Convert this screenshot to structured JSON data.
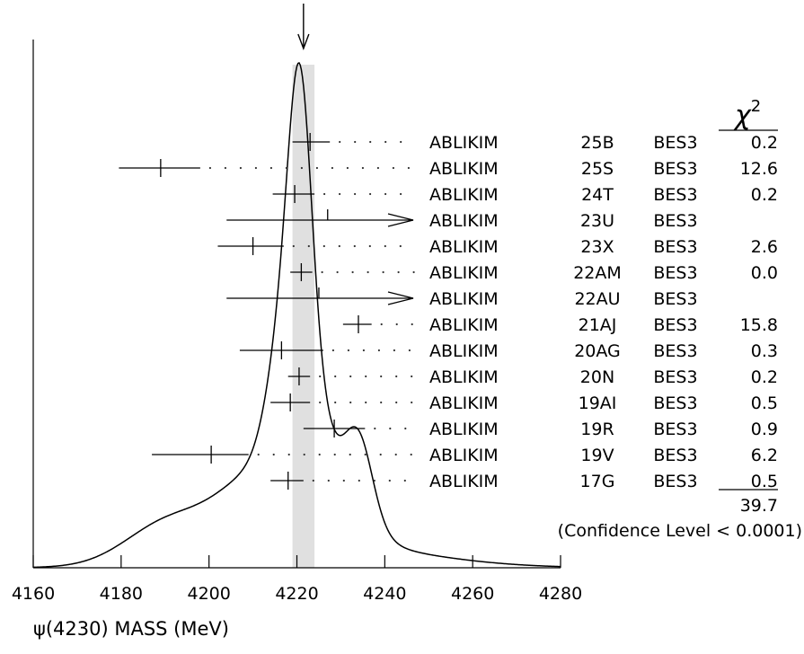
{
  "chart_data": {
    "type": "scatter",
    "subtype": "ideogram",
    "xlabel": "ψ(4230) MASS (MeV)",
    "xlim": [
      4160,
      4280
    ],
    "xticks": [
      4160,
      4180,
      4200,
      4220,
      4240,
      4260,
      4280
    ],
    "average": {
      "value": 4221.5,
      "band": [
        4219,
        4224
      ]
    },
    "chi2_header": "χ",
    "chi2_header_power": "2",
    "measurements": [
      {
        "value": 4223.0,
        "err_lo": 4.0,
        "err_hi": 4.5,
        "author": "ABLIKIM",
        "code": "25B",
        "experiment": "BES3",
        "chi2": "0.2"
      },
      {
        "value": 4189.0,
        "err_lo": 9.5,
        "err_hi": 9.0,
        "author": "ABLIKIM",
        "code": "25S",
        "experiment": "BES3",
        "chi2": "12.6"
      },
      {
        "value": 4219.5,
        "err_lo": 5.0,
        "err_hi": 4.5,
        "author": "ABLIKIM",
        "code": "24T",
        "experiment": "BES3",
        "chi2": "0.2"
      },
      {
        "value": 4227.0,
        "err_lo": 23.0,
        "err_hi": 23.0,
        "arrow": "right",
        "author": "ABLIKIM",
        "code": "23U",
        "experiment": "BES3",
        "chi2": ""
      },
      {
        "value": 4210.0,
        "err_lo": 8.0,
        "err_hi": 7.0,
        "author": "ABLIKIM",
        "code": "23X",
        "experiment": "BES3",
        "chi2": "2.6"
      },
      {
        "value": 4221.0,
        "err_lo": 2.5,
        "err_hi": 2.5,
        "author": "ABLIKIM",
        "code": "22AM",
        "experiment": "BES3",
        "chi2": "0.0"
      },
      {
        "value": 4225.0,
        "err_lo": 21.0,
        "err_hi": 21.0,
        "arrow": "right",
        "author": "ABLIKIM",
        "code": "22AU",
        "experiment": "BES3",
        "chi2": ""
      },
      {
        "value": 4234.0,
        "err_lo": 3.5,
        "err_hi": 3.0,
        "author": "ABLIKIM",
        "code": "21AJ",
        "experiment": "BES3",
        "chi2": "15.8"
      },
      {
        "value": 4216.5,
        "err_lo": 9.5,
        "err_hi": 9.5,
        "author": "ABLIKIM",
        "code": "20AG",
        "experiment": "BES3",
        "chi2": "0.3"
      },
      {
        "value": 4220.5,
        "err_lo": 2.5,
        "err_hi": 2.5,
        "author": "ABLIKIM",
        "code": "20N",
        "experiment": "BES3",
        "chi2": "0.2"
      },
      {
        "value": 4218.5,
        "err_lo": 4.5,
        "err_hi": 4.5,
        "author": "ABLIKIM",
        "code": "19AI",
        "experiment": "BES3",
        "chi2": "0.5"
      },
      {
        "value": 4228.5,
        "err_lo": 7.0,
        "err_hi": 7.0,
        "author": "ABLIKIM",
        "code": "19R",
        "experiment": "BES3",
        "chi2": "0.9"
      },
      {
        "value": 4200.5,
        "err_lo": 13.5,
        "err_hi": 8.5,
        "author": "ABLIKIM",
        "code": "19V",
        "experiment": "BES3",
        "chi2": "6.2"
      },
      {
        "value": 4218.0,
        "err_lo": 4.0,
        "err_hi": 3.5,
        "author": "ABLIKIM",
        "code": "17G",
        "experiment": "BES3",
        "chi2": "0.5"
      }
    ],
    "chi2_total": "39.7",
    "confidence_level": "(Confidence Level < 0.0001)",
    "grid": false,
    "legend": "none"
  }
}
